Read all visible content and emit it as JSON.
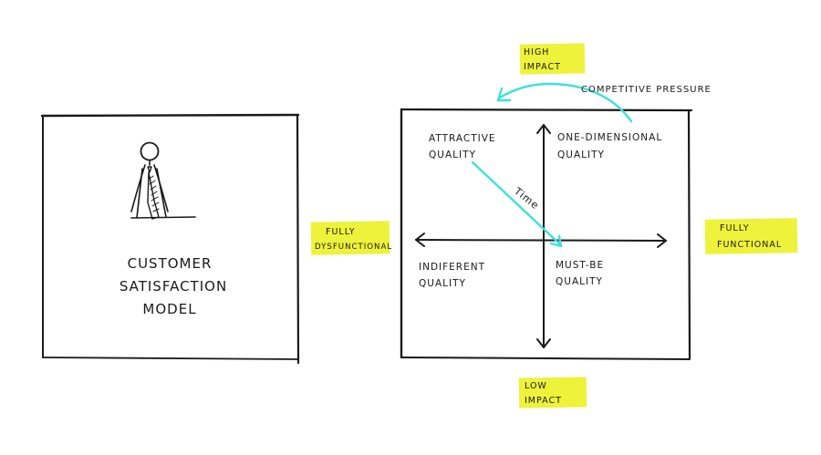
{
  "left_card": {
    "title_lines": [
      "CUSTOMER",
      "SATISFACTION",
      "MODEL"
    ],
    "icon": "person-with-tie-icon"
  },
  "highlight_color": "#eef23a",
  "arrow_color": "#3fe0df",
  "axes": {
    "top": [
      "HIGH",
      "IMPACT"
    ],
    "bottom": [
      "LOW",
      "IMPACT"
    ],
    "left": [
      "FULLY",
      "DYSFUNCTIONAL"
    ],
    "right": [
      "FULLY",
      "FUNCTIONAL"
    ]
  },
  "quadrants": {
    "top_left": [
      "ATTRACTIVE",
      "QUALITY"
    ],
    "top_right": [
      "ONE-DIMENSIONAL",
      "QUALITY"
    ],
    "bottom_left": [
      "INDIFERENT",
      "QUALITY"
    ],
    "bottom_right": [
      "MUST-BE",
      "QUALITY"
    ]
  },
  "annotations": {
    "pressure": "COMPETITIVE PRESSURE",
    "time": "Time"
  }
}
